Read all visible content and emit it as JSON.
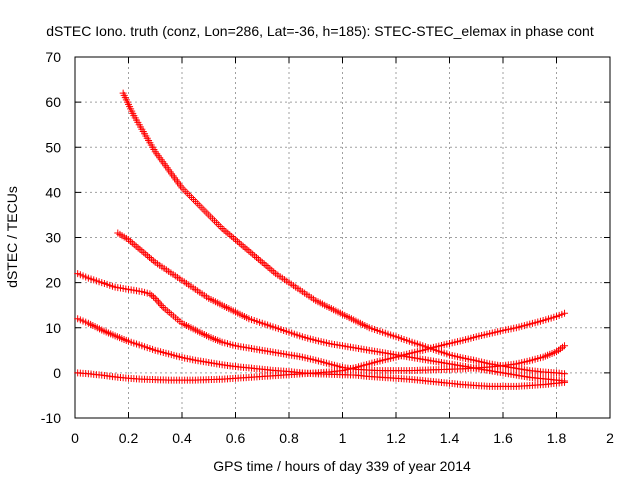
{
  "chart_data": {
    "type": "scatter",
    "title": "dSTEC Iono. truth (conz, Lon=286, Lat=-36, h=185): STEC-STEC_elemax in phase cont",
    "xlabel": "GPS time / hours of day 339 of year 2014",
    "ylabel": "dSTEC  / TECUs",
    "xlim": [
      0,
      2
    ],
    "ylim": [
      -10,
      70
    ],
    "xticks": [
      0,
      0.2,
      0.4,
      0.6,
      0.8,
      1,
      1.2,
      1.4,
      1.6,
      1.8,
      2
    ],
    "xtick_labels": [
      "0",
      "0.2",
      "0.4",
      "0.6",
      "0.8",
      "1",
      "1.2",
      "1.4",
      "1.6",
      "1.8",
      "2"
    ],
    "yticks": [
      -10,
      0,
      10,
      20,
      30,
      40,
      50,
      60,
      70
    ],
    "ytick_labels": [
      "-10",
      "0",
      "10",
      "20",
      "30",
      "40",
      "50",
      "60",
      "70"
    ],
    "grid": true,
    "marker": "+",
    "marker_color": "#ff0000",
    "series": [
      {
        "x": [
          0.18,
          0.22,
          0.26,
          0.3,
          0.35,
          0.4,
          0.45,
          0.5,
          0.55,
          0.6,
          0.65,
          0.7,
          0.75,
          0.8,
          0.85,
          0.9,
          0.95,
          1.0,
          1.05,
          1.1,
          1.15,
          1.2,
          1.25,
          1.3,
          1.35,
          1.4,
          1.45,
          1.5,
          1.55,
          1.6,
          1.65,
          1.7,
          1.75,
          1.8,
          1.83
        ],
        "y": [
          62,
          57,
          53,
          49,
          45,
          41,
          38,
          35,
          32,
          29.5,
          27,
          24.5,
          22,
          20,
          18,
          16,
          14.5,
          13,
          11.5,
          10,
          9,
          8,
          7,
          6,
          5,
          4,
          3.3,
          2.7,
          2,
          1.5,
          1,
          0.5,
          0.2,
          0,
          -0.2
        ]
      },
      {
        "x": [
          0.16,
          0.2,
          0.25,
          0.3,
          0.35,
          0.4,
          0.45,
          0.5,
          0.55,
          0.6,
          0.65,
          0.7,
          0.75,
          0.8,
          0.85,
          0.9,
          0.95,
          1.0,
          1.05,
          1.1,
          1.15,
          1.2,
          1.25,
          1.3,
          1.35,
          1.4,
          1.45,
          1.5,
          1.55,
          1.6,
          1.65,
          1.7,
          1.75,
          1.8,
          1.83
        ],
        "y": [
          31,
          29.5,
          27,
          24.5,
          22.5,
          20.5,
          18.5,
          16.5,
          15,
          13.5,
          12,
          11,
          10,
          9,
          8,
          7.2,
          6.5,
          6,
          5.5,
          5,
          4.5,
          4,
          3.5,
          3,
          2.5,
          2,
          1.5,
          1,
          0.5,
          0,
          -0.5,
          -1,
          -1.3,
          -1.6,
          -1.8
        ]
      },
      {
        "x": [
          0.01,
          0.05,
          0.1,
          0.15,
          0.2,
          0.25,
          0.28,
          0.3,
          0.33,
          0.36,
          0.4,
          0.45,
          0.5,
          0.55,
          0.6,
          0.65,
          0.7,
          0.75,
          0.8,
          0.85,
          0.9,
          0.95,
          1.0,
          1.05,
          1.1,
          1.15,
          1.2,
          1.25,
          1.3,
          1.35,
          1.4,
          1.45,
          1.5,
          1.55,
          1.6,
          1.65,
          1.7,
          1.75,
          1.8,
          1.83
        ],
        "y": [
          22,
          21,
          20,
          19,
          18.5,
          18,
          17.5,
          16.5,
          14.5,
          13,
          11,
          9.5,
          8,
          6.8,
          6,
          5.5,
          5,
          4.5,
          4,
          3.5,
          2.8,
          2,
          1.2,
          0.8,
          0.6,
          0.5,
          0.5,
          0.5,
          0.6,
          0.7,
          0.8,
          0.9,
          1.1,
          1.3,
          1.6,
          2,
          2.7,
          3.5,
          4.7,
          6
        ]
      },
      {
        "x": [
          0.01,
          0.05,
          0.1,
          0.15,
          0.2,
          0.25,
          0.3,
          0.35,
          0.4,
          0.45,
          0.5,
          0.55,
          0.6,
          0.65,
          0.7,
          0.75,
          0.8,
          0.85,
          0.9,
          0.95,
          1.0,
          1.05,
          1.1,
          1.15,
          1.2,
          1.25,
          1.3,
          1.35,
          1.4,
          1.45,
          1.5,
          1.55,
          1.6,
          1.65,
          1.7,
          1.75,
          1.8,
          1.83
        ],
        "y": [
          12,
          11,
          9.5,
          8.2,
          7,
          6,
          5,
          4.2,
          3.4,
          2.8,
          2.3,
          1.8,
          1.4,
          1.1,
          0.8,
          0.5,
          0.3,
          0,
          -0.2,
          -0.3,
          -0.4,
          -0.5,
          -0.8,
          -1,
          -1.2,
          -1.4,
          -1.7,
          -2,
          -2.3,
          -2.6,
          -2.8,
          -3,
          -3,
          -3,
          -2.8,
          -2.6,
          -2.3,
          -2.1
        ]
      },
      {
        "x": [
          0.01,
          0.05,
          0.1,
          0.15,
          0.2,
          0.25,
          0.3,
          0.35,
          0.4,
          0.45,
          0.5,
          0.55,
          0.6,
          0.65,
          0.7,
          0.75,
          0.8,
          0.85,
          0.9,
          0.95,
          1.0,
          1.05,
          1.1,
          1.15,
          1.2,
          1.25,
          1.3,
          1.35,
          1.4,
          1.45,
          1.5,
          1.55,
          1.6,
          1.65,
          1.7,
          1.75,
          1.8,
          1.83
        ],
        "y": [
          0,
          -0.2,
          -0.5,
          -0.9,
          -1.2,
          -1.4,
          -1.5,
          -1.6,
          -1.6,
          -1.6,
          -1.5,
          -1.4,
          -1.2,
          -1,
          -0.8,
          -0.6,
          -0.4,
          -0.2,
          0,
          0.2,
          0.5,
          1.2,
          2,
          2.8,
          3.5,
          4.3,
          5,
          5.8,
          6.5,
          7.2,
          8,
          8.7,
          9.4,
          10,
          10.8,
          11.6,
          12.5,
          13.2
        ]
      }
    ]
  }
}
